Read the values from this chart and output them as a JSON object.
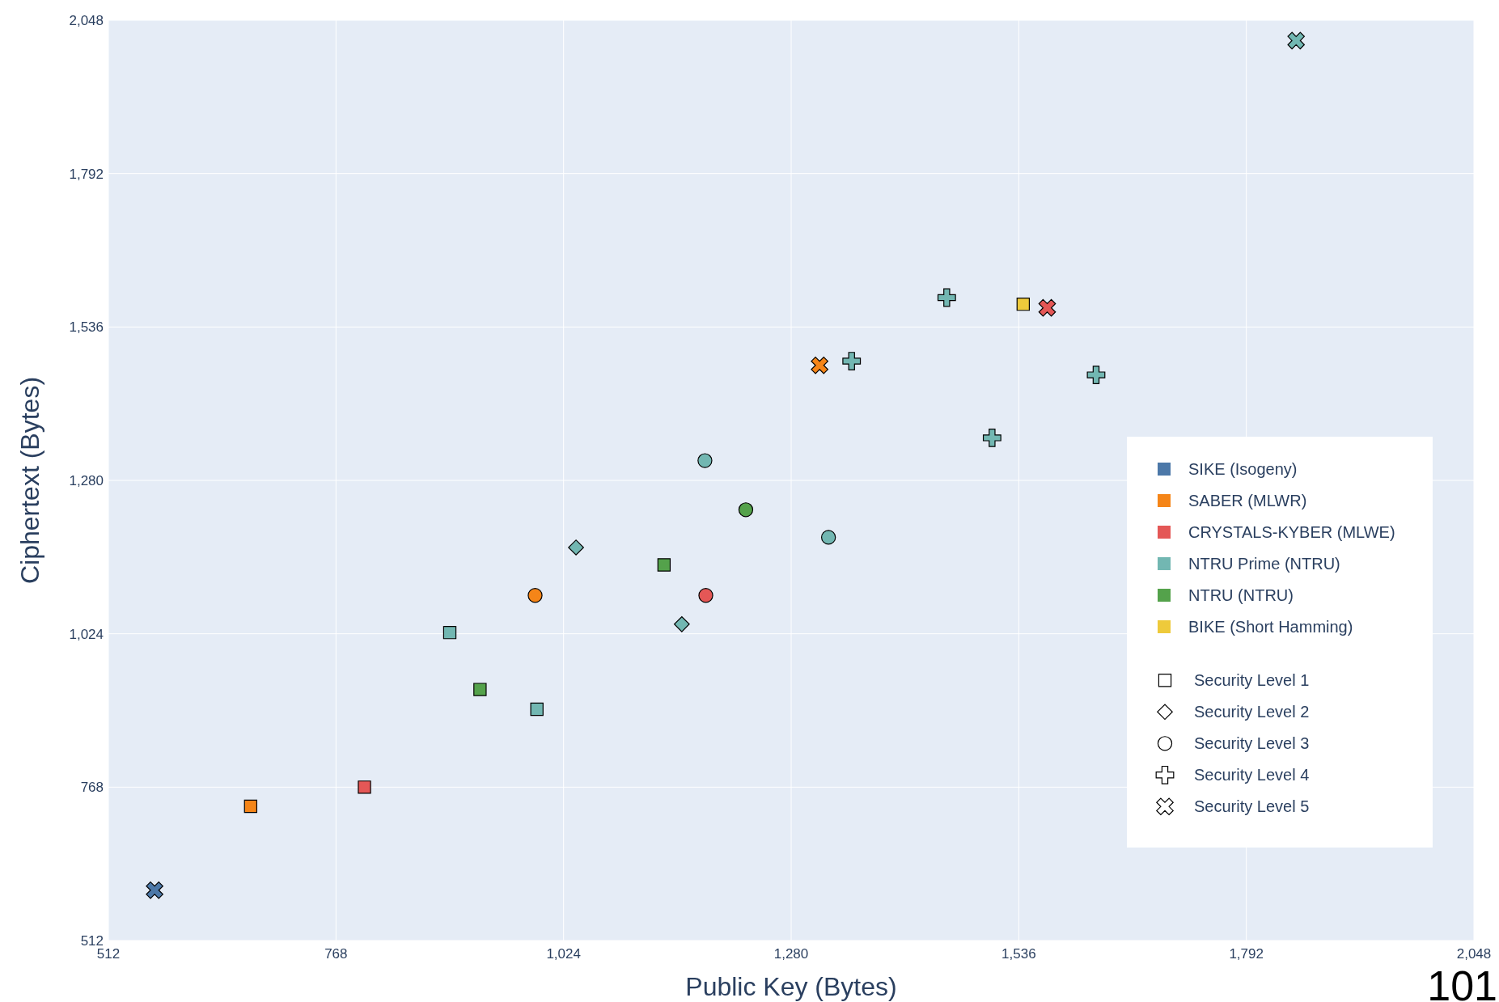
{
  "chart_data": {
    "type": "scatter",
    "xlabel": "Public Key (Bytes)",
    "ylabel": "Ciphertext (Bytes)",
    "xlim": [
      512,
      2048
    ],
    "ylim": [
      512,
      2048
    ],
    "xticks": [
      {
        "value": 512,
        "label": "512"
      },
      {
        "value": 768,
        "label": "768"
      },
      {
        "value": 1024,
        "label": "1,024"
      },
      {
        "value": 1280,
        "label": "1,280"
      },
      {
        "value": 1536,
        "label": "1,536"
      },
      {
        "value": 1792,
        "label": "1,792"
      },
      {
        "value": 2048,
        "label": "2,048"
      }
    ],
    "yticks": [
      {
        "value": 512,
        "label": "512"
      },
      {
        "value": 768,
        "label": "768"
      },
      {
        "value": 1024,
        "label": "1,024"
      },
      {
        "value": 1280,
        "label": "1,280"
      },
      {
        "value": 1536,
        "label": "1,536"
      },
      {
        "value": 1792,
        "label": "1,792"
      },
      {
        "value": 2048,
        "label": "2,048"
      }
    ],
    "grid": true,
    "legend": "right",
    "series": [
      {
        "name": "SIKE (Isogeny)",
        "color": "#4c78a8",
        "marker": "cross",
        "x": [
          564
        ],
        "values": [
          596
        ]
      },
      {
        "name": "SABER (MLWR)",
        "color": "#f58518",
        "marker": "square",
        "x": [
          672
        ],
        "values": [
          736
        ]
      },
      {
        "color": "#f58518",
        "marker": "circle",
        "x": [
          992
        ],
        "values": [
          1088
        ]
      },
      {
        "color": "#f58518",
        "marker": "cross",
        "x": [
          1312
        ],
        "values": [
          1472
        ]
      },
      {
        "name": "CRYSTALS-KYBER (MLWE)",
        "color": "#e45756",
        "marker": "square",
        "x": [
          800
        ],
        "values": [
          768
        ]
      },
      {
        "color": "#e45756",
        "marker": "circle",
        "x": [
          1184
        ],
        "values": [
          1088
        ]
      },
      {
        "color": "#e45756",
        "marker": "cross",
        "x": [
          1568
        ],
        "values": [
          1568
        ]
      },
      {
        "name": "NTRU Prime (NTRU)",
        "color": "#72b7b2",
        "marker": "square",
        "x": [
          896,
          994
        ],
        "values": [
          1026,
          898
        ]
      },
      {
        "color": "#72b7b2",
        "marker": "diamond",
        "x": [
          1038,
          1157
        ],
        "values": [
          1168,
          1040
        ]
      },
      {
        "color": "#72b7b2",
        "marker": "circle",
        "x": [
          1183,
          1322
        ],
        "values": [
          1313,
          1185
        ]
      },
      {
        "color": "#72b7b2",
        "marker": "plus",
        "x": [
          1455,
          1348,
          1623,
          1506
        ],
        "values": [
          1585,
          1479,
          1456,
          1351
        ]
      },
      {
        "color": "#72b7b2",
        "marker": "cross",
        "x": [
          1848
        ],
        "values": [
          2014
        ]
      },
      {
        "name": "NTRU (NTRU)",
        "color": "#54a24b",
        "marker": "square",
        "x": [
          930,
          1137
        ],
        "values": [
          931,
          1139
        ]
      },
      {
        "color": "#54a24b",
        "marker": "circle",
        "x": [
          1229
        ],
        "values": [
          1231
        ]
      },
      {
        "name": "BIKE (Short Hamming)",
        "color": "#eeca3b",
        "marker": "square",
        "x": [
          1541
        ],
        "values": [
          1574
        ]
      },
      {
        "name": "Security Level 1",
        "marker": "square"
      },
      {
        "name": "Security Level 2",
        "marker": "diamond"
      },
      {
        "name": "Security Level 3",
        "marker": "circle"
      },
      {
        "name": "Security Level 4",
        "marker": "plus"
      },
      {
        "name": "Security Level 5",
        "marker": "cross"
      }
    ],
    "annotations": [
      "101"
    ]
  }
}
